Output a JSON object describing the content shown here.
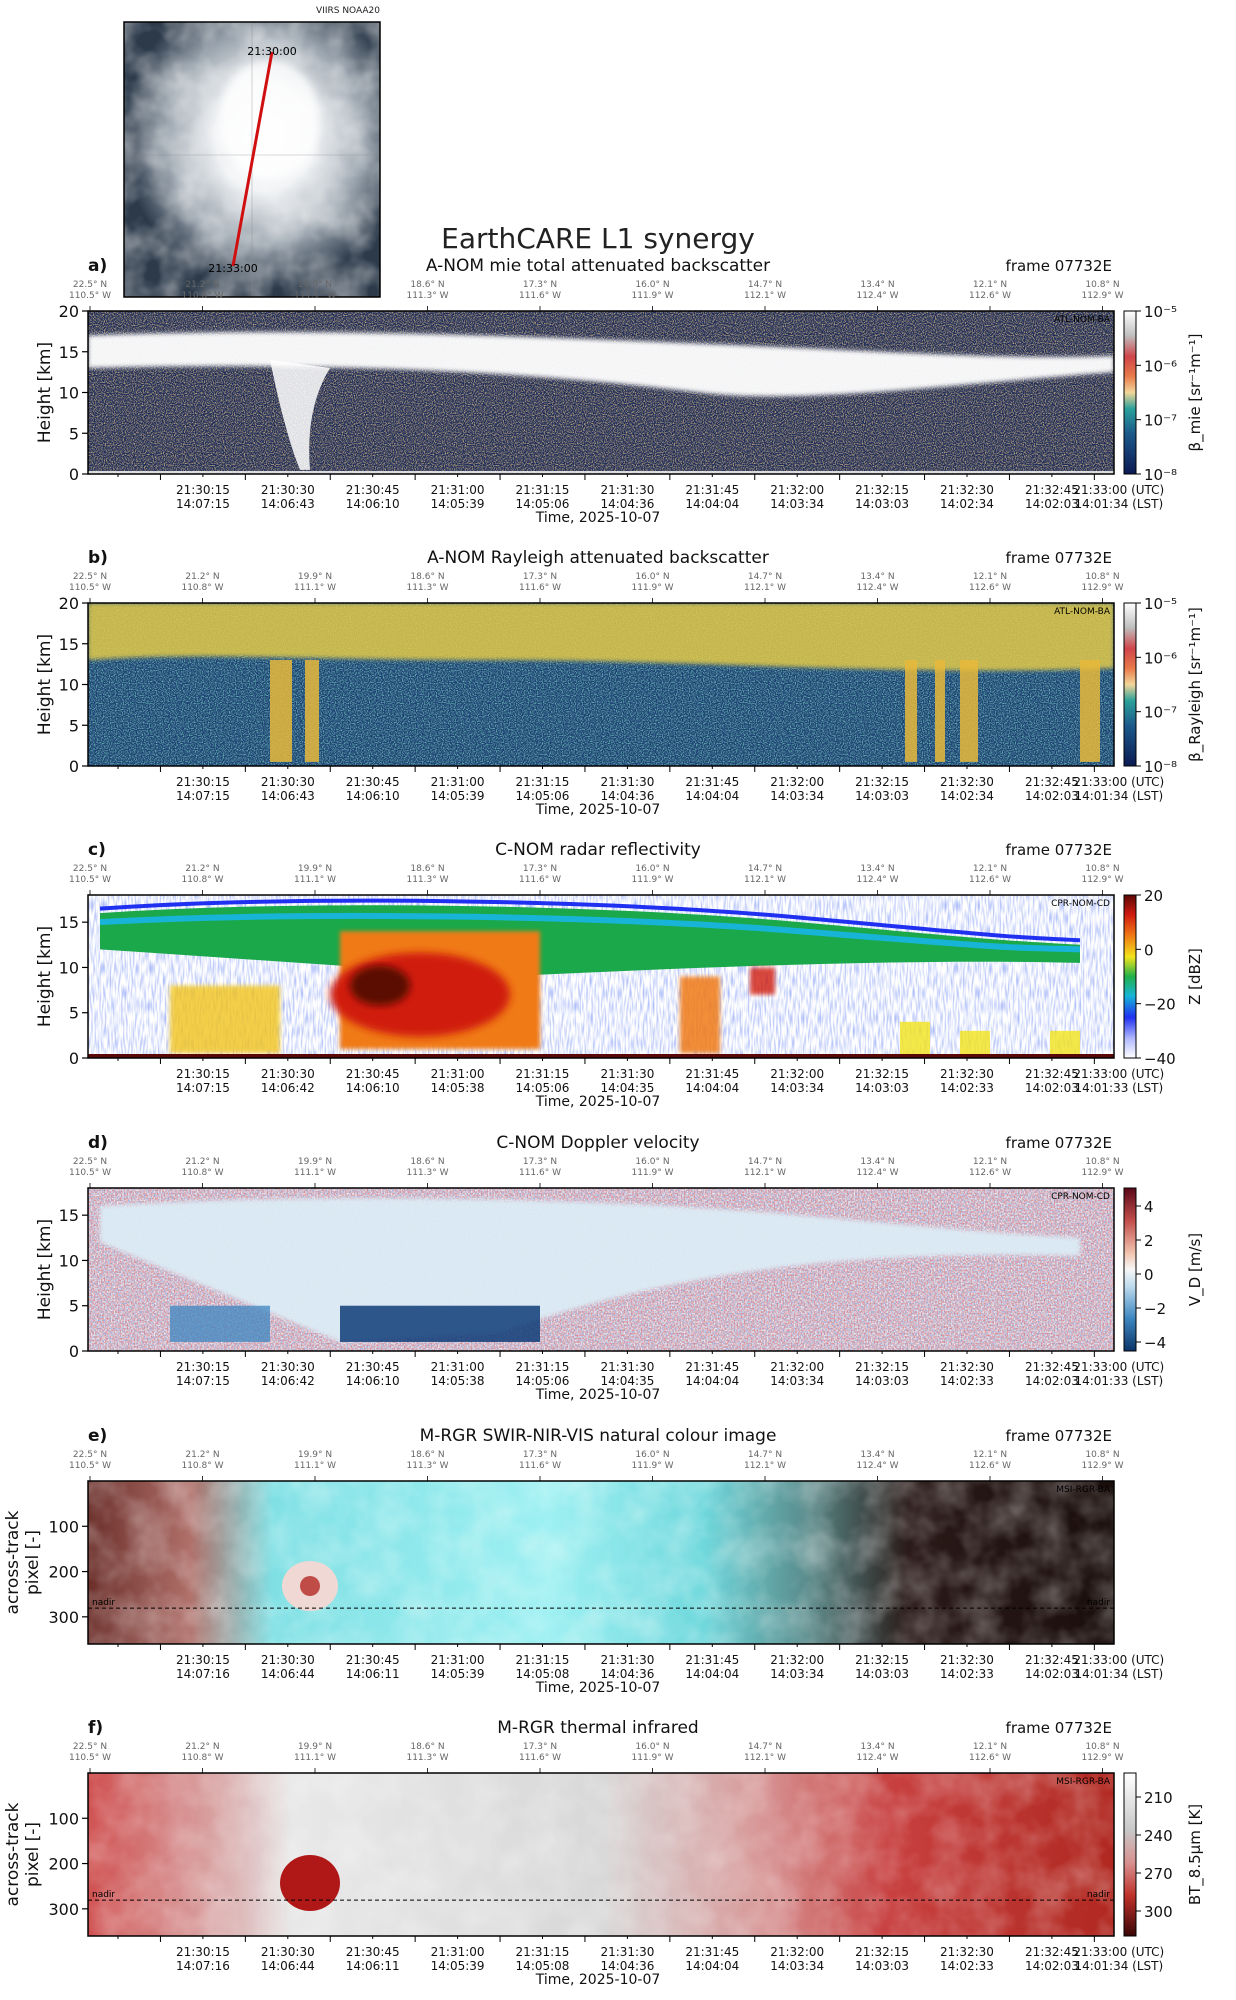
{
  "title": "EarthCARE L1 synergy",
  "map": {
    "source": "VIIRS NOAA20",
    "start_time": "21:30:00",
    "end_time": "21:33:00"
  },
  "frame": "frame 07732E",
  "date_label": "Time, 2025-10-07",
  "utc_suffix": "(UTC)",
  "lst_suffix": "(LST)",
  "coords": [
    {
      "lat": "22.5° N",
      "lon": "110.5° W"
    },
    {
      "lat": "21.2° N",
      "lon": "110.8° W"
    },
    {
      "lat": "19.9° N",
      "lon": "111.1° W"
    },
    {
      "lat": "18.6° N",
      "lon": "111.3° W"
    },
    {
      "lat": "17.3° N",
      "lon": "111.6° W"
    },
    {
      "lat": "16.0° N",
      "lon": "111.9° W"
    },
    {
      "lat": "14.7° N",
      "lon": "112.1° W"
    },
    {
      "lat": "13.4° N",
      "lon": "112.4° W"
    },
    {
      "lat": "12.1° N",
      "lon": "112.6° W"
    },
    {
      "lat": "10.8° N",
      "lon": "112.9° W"
    }
  ],
  "utc_ticks": [
    "21:30:15",
    "21:30:30",
    "21:30:45",
    "21:31:00",
    "21:31:15",
    "21:31:30",
    "21:31:45",
    "21:32:00",
    "21:32:15",
    "21:32:30",
    "21:32:45",
    "21:33:00"
  ],
  "chart_data": [
    {
      "id": "a",
      "type": "heatmap",
      "letter": "a)",
      "title": "A-NOM mie total attenuated backscatter",
      "product": "ATL-NOM-BA",
      "ylabel": "Height [km]",
      "yticks": [
        "0",
        "5",
        "10",
        "15",
        "20"
      ],
      "ylim": [
        0,
        20
      ],
      "cbar_label": "β_mie [sr⁻¹m⁻¹]",
      "cbar_ticks": [
        "10⁻⁵",
        "10⁻⁶",
        "10⁻⁷",
        "10⁻⁸"
      ],
      "cbar_scale": "log",
      "lst_ticks": [
        "14:07:15",
        "14:06:43",
        "14:06:10",
        "14:05:39",
        "14:05:06",
        "14:04:36",
        "14:04:04",
        "14:03:34",
        "14:03:03",
        "14:02:34",
        "14:02:03",
        "14:01:34"
      ],
      "colors": [
        "#0b1a52",
        "#1c4f8a",
        "#2a8e94",
        "#8fc8a0",
        "#f2e0b6",
        "#f2a24a",
        "#e65b3b",
        "#ffffff"
      ]
    },
    {
      "id": "b",
      "type": "heatmap",
      "letter": "b)",
      "title": "A-NOM Rayleigh attenuated backscatter",
      "product": "ATL-NOM-BA",
      "ylabel": "Height [km]",
      "yticks": [
        "0",
        "5",
        "10",
        "15",
        "20"
      ],
      "ylim": [
        0,
        20
      ],
      "cbar_label": "β_Rayleigh [sr⁻¹m⁻¹]",
      "cbar_ticks": [
        "10⁻⁵",
        "10⁻⁶",
        "10⁻⁷",
        "10⁻⁸"
      ],
      "cbar_scale": "log",
      "lst_ticks": [
        "14:07:15",
        "14:06:43",
        "14:06:10",
        "14:05:39",
        "14:05:06",
        "14:04:36",
        "14:04:04",
        "14:03:34",
        "14:03:03",
        "14:02:34",
        "14:02:03",
        "14:01:34"
      ],
      "colors": [
        "#0b1a52",
        "#1c4f8a",
        "#2a8e94",
        "#7cc48a",
        "#e8d36b",
        "#f0b23c"
      ]
    },
    {
      "id": "c",
      "type": "heatmap",
      "letter": "c)",
      "title": "C-NOM radar reflectivity",
      "product": "CPR-NOM-CD",
      "ylabel": "Height [km]",
      "yticks": [
        "0",
        "5",
        "10",
        "15"
      ],
      "ylim": [
        0,
        18
      ],
      "cbar_label": "Z [dBZ]",
      "cbar_ticks": [
        "20",
        "0",
        "−20",
        "−40"
      ],
      "cbar_range": [
        -40,
        20
      ],
      "lst_ticks": [
        "14:07:15",
        "14:06:42",
        "14:06:10",
        "14:05:38",
        "14:05:06",
        "14:04:35",
        "14:04:04",
        "14:03:34",
        "14:03:03",
        "14:02:33",
        "14:02:03",
        "14:01:33"
      ],
      "colors": [
        "#ffffff",
        "#2b3cf0",
        "#17b8d8",
        "#22b14c",
        "#f2e21e",
        "#f07c16",
        "#d41c12",
        "#6a0d08"
      ]
    },
    {
      "id": "d",
      "type": "heatmap",
      "letter": "d)",
      "title": "C-NOM Doppler velocity",
      "product": "CPR-NOM-CD",
      "ylabel": "Height [km]",
      "yticks": [
        "0",
        "5",
        "10",
        "15"
      ],
      "ylim": [
        0,
        18
      ],
      "cbar_label": "V_D [m/s]",
      "cbar_ticks": [
        "4",
        "2",
        "0",
        "−2",
        "−4"
      ],
      "cbar_range": [
        -5,
        5
      ],
      "lst_ticks": [
        "14:07:15",
        "14:06:42",
        "14:06:10",
        "14:05:38",
        "14:05:06",
        "14:04:35",
        "14:04:04",
        "14:03:34",
        "14:03:03",
        "14:02:33",
        "14:02:03",
        "14:01:33"
      ],
      "colors": [
        "#0e3c78",
        "#5aa0d0",
        "#d8eaf5",
        "#f7f7f7",
        "#f2c4b0",
        "#c24e4a",
        "#6b0a1e"
      ]
    },
    {
      "id": "e",
      "type": "heatmap",
      "letter": "e)",
      "title": "M-RGR SWIR-NIR-VIS natural colour image",
      "product": "MSI-RGR-BA",
      "ylabel": "across-track pixel [-]",
      "yticks": [
        "100",
        "200",
        "300"
      ],
      "ylim": [
        0,
        360
      ],
      "nadir_label": "nadir",
      "lst_ticks": [
        "14:07:16",
        "14:06:44",
        "14:06:11",
        "14:05:39",
        "14:05:08",
        "14:04:36",
        "14:04:04",
        "14:03:34",
        "14:03:03",
        "14:02:33",
        "14:02:03",
        "14:01:34"
      ],
      "colors": [
        "#3b1e1a",
        "#c98a80",
        "#7fe6ea",
        "#a6f0f2",
        "#e8f8f8",
        "#1a1210"
      ]
    },
    {
      "id": "f",
      "type": "heatmap",
      "letter": "f)",
      "title": "M-RGR thermal infrared",
      "product": "MSI-RGR-BA",
      "ylabel": "across-track pixel [-]",
      "yticks": [
        "100",
        "200",
        "300"
      ],
      "ylim": [
        0,
        360
      ],
      "nadir_label": "nadir",
      "cbar_label": "BT_8.5μm [K]",
      "cbar_ticks": [
        "210",
        "240",
        "270",
        "300"
      ],
      "cbar_range": [
        200,
        310
      ],
      "lst_ticks": [
        "14:07:16",
        "14:06:44",
        "14:06:11",
        "14:05:39",
        "14:05:08",
        "14:04:36",
        "14:04:04",
        "14:03:34",
        "14:03:03",
        "14:02:33",
        "14:02:03",
        "14:01:34"
      ],
      "colors": [
        "#ffffff",
        "#d9d9d9",
        "#bfbfbf",
        "#d07070",
        "#c0322b",
        "#8a0f0f"
      ]
    }
  ]
}
